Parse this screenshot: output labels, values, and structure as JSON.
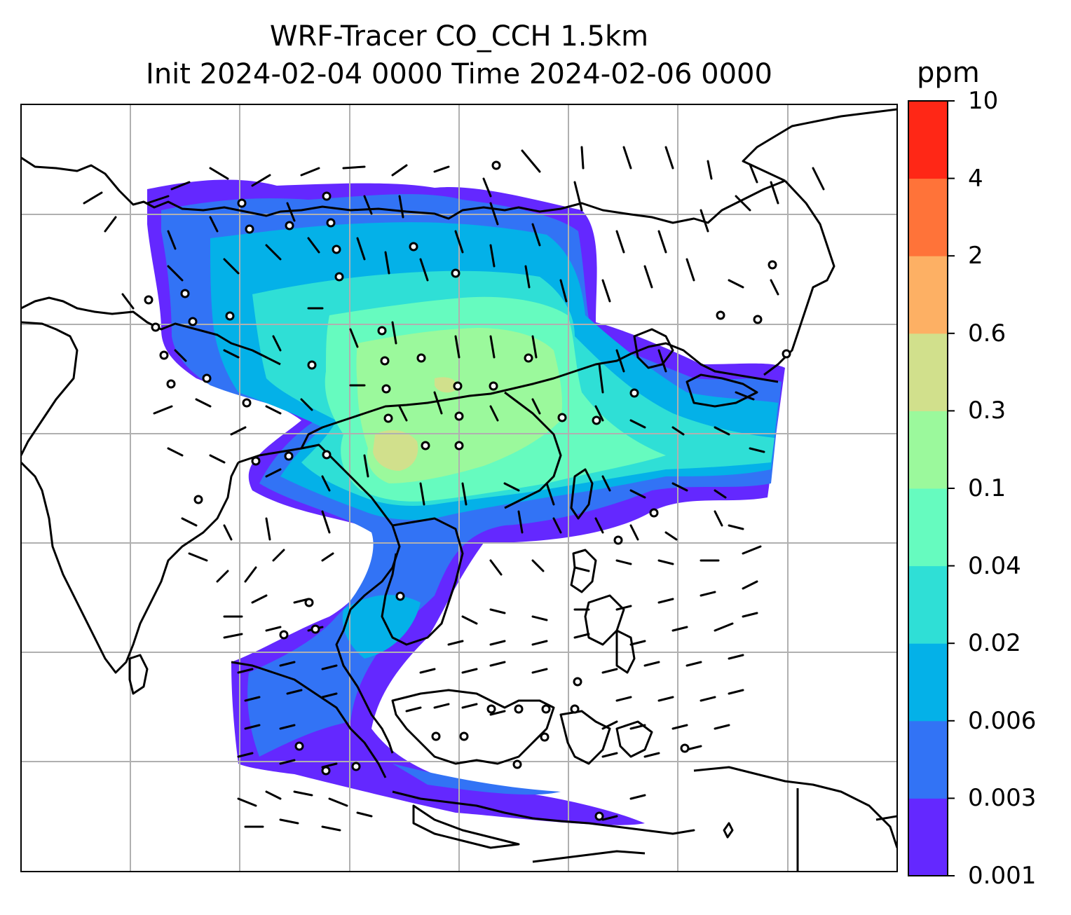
{
  "title_line1": "WRF-Tracer CO_CCH 1.5km",
  "title_line2": "Init 2024-02-04 0000 Time 2024-02-06 0000",
  "colorbar": {
    "unit": "ppm",
    "levels": [
      "0.001",
      "0.003",
      "0.006",
      "0.02",
      "0.04",
      "0.1",
      "0.3",
      "0.6",
      "2",
      "4",
      "10"
    ],
    "colors": [
      "#6428ff",
      "#3273f5",
      "#04b1e8",
      "#2fdfd6",
      "#66fbbf",
      "#9bf99c",
      "#d1e08c",
      "#fdb064",
      "#ff7339",
      "#ff2716"
    ]
  },
  "chart_data": {
    "type": "map",
    "field": "CO_CCH tracer concentration at 1.5km",
    "unit": "ppm",
    "grid": true,
    "coastlines": true,
    "wind_barbs": true,
    "legend": "colorbar-right"
  }
}
